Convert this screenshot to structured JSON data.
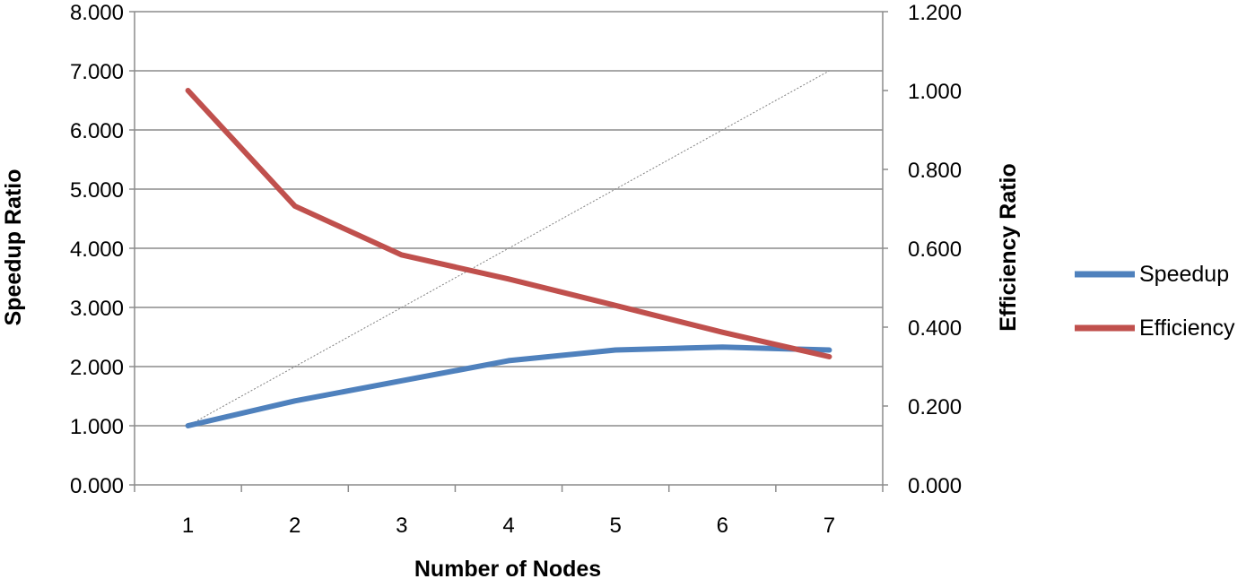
{
  "chart_data": {
    "type": "line",
    "xlabel": "Number of Nodes",
    "ylabel": "Speedup Ratio",
    "y2label": "Efficiency Ratio",
    "categories": [
      "1",
      "2",
      "3",
      "4",
      "5",
      "6",
      "7"
    ],
    "ylim": [
      0,
      8
    ],
    "y_ticks": [
      "0.000",
      "1.000",
      "2.000",
      "3.000",
      "4.000",
      "5.000",
      "6.000",
      "7.000",
      "8.000"
    ],
    "y2lim": [
      0,
      1.2
    ],
    "y2_ticks": [
      "0.000",
      "0.200",
      "0.400",
      "0.600",
      "0.800",
      "1.000",
      "1.200"
    ],
    "grid": true,
    "legend_position": "right",
    "series": [
      {
        "name": "Speedup",
        "axis": "left",
        "color": "#4F81BD",
        "values": [
          1.0,
          1.42,
          1.76,
          2.1,
          2.28,
          2.33,
          2.28
        ]
      },
      {
        "name": "Efficiency",
        "axis": "right",
        "color": "#C0504D",
        "values": [
          1.0,
          0.707,
          0.583,
          0.522,
          0.455,
          0.387,
          0.325
        ]
      }
    ],
    "reference_line": {
      "axis": "left",
      "color": "#808080",
      "values": [
        1,
        2,
        3,
        4,
        5,
        6,
        7
      ]
    }
  }
}
